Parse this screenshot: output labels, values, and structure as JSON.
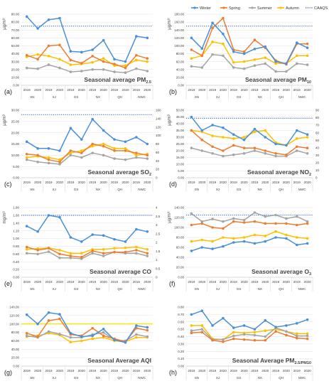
{
  "legend": {
    "items": [
      {
        "label": "Winter",
        "color": "#4a90d9",
        "kind": "line"
      },
      {
        "label": "Spring",
        "color": "#ed7d31",
        "kind": "line"
      },
      {
        "label": "Summer",
        "color": "#a5a5a5",
        "kind": "line"
      },
      {
        "label": "Autumn",
        "color": "#ffc000",
        "kind": "line"
      },
      {
        "label": "CAAQS G2",
        "color": "#4472c4",
        "kind": "dotted"
      }
    ]
  },
  "chart_data": [
    {
      "type": "line",
      "panel": "(a)",
      "title": "Seasonal average PM",
      "title_sub": "2.5",
      "ylabel": "μg/m³",
      "ylim": [
        0,
        90
      ],
      "yticks": [
        0,
        10,
        20,
        30,
        40,
        50,
        60,
        70,
        80,
        90
      ],
      "tick_decimals": 2,
      "x": [
        "2019",
        "2020",
        "2019",
        "2020",
        "2019",
        "2020",
        "2019",
        "2020",
        "2019",
        "2020",
        "2019",
        "2020"
      ],
      "groups": [
        "SN",
        "XJ",
        "GS",
        "NX",
        "QH",
        "NWC"
      ],
      "reference": 75,
      "series": [
        {
          "name": "Winter",
          "values": [
            87,
            72,
            83,
            85,
            43,
            42,
            45,
            57,
            33,
            30,
            62,
            60
          ]
        },
        {
          "name": "Spring",
          "values": [
            38,
            33,
            50,
            51,
            32,
            28,
            37,
            30,
            27,
            22,
            38,
            34
          ]
        },
        {
          "name": "Summer",
          "values": [
            22,
            21,
            26,
            22,
            17,
            18,
            20,
            20,
            17,
            16,
            21,
            18
          ]
        },
        {
          "name": "Autumn",
          "values": [
            36,
            39,
            37,
            33,
            26,
            27,
            29,
            34,
            25,
            25,
            32,
            30
          ]
        }
      ]
    },
    {
      "type": "line",
      "panel": "(b)",
      "title": "Seasonal average PM",
      "title_sub": "10",
      "ylabel": "μg/m³",
      "ylim": [
        0,
        180
      ],
      "yticks": [
        0,
        20,
        40,
        60,
        80,
        100,
        120,
        140,
        160,
        180
      ],
      "tick_decimals": 2,
      "x": [
        "2019",
        "2020",
        "2019",
        "2020",
        "2019",
        "2020",
        "2019",
        "2020",
        "2019",
        "2020",
        "2019",
        "2020"
      ],
      "groups": [
        "SN",
        "XJ",
        "GS",
        "NX",
        "QH",
        "NWC"
      ],
      "reference": 150,
      "series": [
        {
          "name": "Winter",
          "values": [
            120,
            93,
            158,
            130,
            85,
            80,
            92,
            98,
            60,
            55,
            108,
            95
          ]
        },
        {
          "name": "Spring",
          "values": [
            90,
            75,
            145,
            170,
            90,
            85,
            115,
            95,
            63,
            53,
            105,
            105
          ]
        },
        {
          "name": "Summer",
          "values": [
            48,
            45,
            78,
            75,
            45,
            42,
            50,
            55,
            35,
            35,
            55,
            52
          ]
        },
        {
          "name": "Autumn",
          "values": [
            68,
            75,
            110,
            105,
            58,
            60,
            65,
            70,
            55,
            55,
            75,
            75
          ]
        }
      ]
    },
    {
      "type": "line",
      "panel": "(c)",
      "title": "Seasonal average SO",
      "title_sub": "2",
      "ylabel": "μg/m³",
      "ylim": [
        0,
        30
      ],
      "yticks": [
        0,
        5,
        10,
        15,
        20,
        25,
        30
      ],
      "tick_decimals": 2,
      "y2lim": [
        0,
        160
      ],
      "y2ticks": [
        0,
        20,
        40,
        60,
        80,
        100,
        120,
        140,
        160
      ],
      "x": [
        "2019",
        "2020",
        "2019",
        "2020",
        "2019",
        "2020",
        "2019",
        "2020",
        "2019",
        "2020",
        "2019",
        "2020"
      ],
      "groups": [
        "SN",
        "XJ",
        "GS",
        "NX",
        "QH",
        "NWC"
      ],
      "reference": 28,
      "series": [
        {
          "name": "Winter",
          "values": [
            16,
            13,
            13,
            12,
            22,
            17,
            26,
            21,
            17,
            16,
            18,
            15
          ]
        },
        {
          "name": "Spring",
          "values": [
            10.5,
            10,
            8,
            7,
            12,
            11,
            15,
            14,
            12,
            12,
            11,
            10
          ]
        },
        {
          "name": "Summer",
          "values": [
            8,
            7,
            6.5,
            6,
            10,
            9,
            11,
            10,
            8.5,
            8,
            9,
            8.5
          ]
        },
        {
          "name": "Autumn",
          "values": [
            9,
            9.5,
            9,
            8,
            11,
            12,
            14,
            15,
            13,
            13,
            10,
            10.5
          ]
        }
      ]
    },
    {
      "type": "line",
      "panel": "(d)",
      "title": "Seasonal average NO",
      "title_sub": "2",
      "ylabel": "μg/m³",
      "ylim": [
        0,
        50
      ],
      "yticks": [
        0,
        5,
        10,
        15,
        20,
        25,
        30,
        35,
        40,
        45,
        50
      ],
      "tick_decimals": 2,
      "y2lim": [
        0,
        90
      ],
      "y2ticks": [
        0,
        10,
        20,
        30,
        40,
        50,
        60,
        70,
        80,
        90
      ],
      "x": [
        "2019",
        "2020",
        "2019",
        "2020",
        "2019",
        "2020",
        "2019",
        "2020",
        "2019",
        "2020",
        "2019",
        "2020"
      ],
      "groups": [
        "SN",
        "XJ",
        "GS",
        "NX",
        "QH",
        "NWC"
      ],
      "reference": 44,
      "series": [
        {
          "name": "Winter",
          "values": [
            45,
            35,
            39,
            37,
            32,
            28,
            36,
            30,
            25,
            24,
            35,
            32
          ]
        },
        {
          "name": "Spring",
          "values": [
            35,
            28,
            23,
            20,
            24,
            22,
            22,
            20,
            18,
            17,
            23,
            22
          ]
        },
        {
          "name": "Summer",
          "values": [
            22,
            20,
            18,
            16,
            17,
            18,
            20,
            18,
            16,
            16,
            20,
            18
          ]
        },
        {
          "name": "Autumn",
          "values": [
            35,
            34,
            31,
            30,
            29,
            30,
            34,
            35,
            26,
            24,
            29,
            30
          ]
        }
      ]
    },
    {
      "type": "line",
      "panel": "(e)",
      "title": "Seasonal average CO",
      "title_sub": "",
      "ylabel": "mg/m³",
      "ylim": [
        0,
        1.8
      ],
      "yticks": [
        0,
        0.2,
        0.4,
        0.6,
        0.8,
        1.0,
        1.2,
        1.4,
        1.6,
        1.8
      ],
      "tick_decimals": 2,
      "y2lim": [
        0,
        4
      ],
      "y2ticks": [
        0,
        0.5,
        1,
        1.5,
        2,
        2.5,
        3,
        3.5,
        4
      ],
      "x": [
        "2019",
        "2020",
        "2019",
        "2020",
        "2019",
        "2020",
        "2019",
        "2020",
        "2019",
        "2020",
        "2019",
        "2020"
      ],
      "groups": [
        "SN",
        "XJ",
        "GS",
        "NX",
        "QH",
        "NWC"
      ],
      "reference": 1.6,
      "series": [
        {
          "name": "Winter",
          "values": [
            1.32,
            1.18,
            1.6,
            1.55,
            1.03,
            0.92,
            1.1,
            1.08,
            0.98,
            0.92,
            1.24,
            1.18
          ]
        },
        {
          "name": "Spring",
          "values": [
            0.78,
            0.7,
            0.75,
            0.6,
            0.55,
            0.52,
            0.68,
            0.62,
            0.65,
            0.65,
            0.7,
            0.62
          ]
        },
        {
          "name": "Summer",
          "values": [
            0.62,
            0.6,
            0.66,
            0.5,
            0.5,
            0.48,
            0.62,
            0.55,
            0.65,
            0.62,
            0.62,
            0.55
          ]
        },
        {
          "name": "Autumn",
          "values": [
            0.72,
            0.74,
            0.76,
            0.7,
            0.62,
            0.62,
            0.72,
            0.72,
            0.75,
            0.76,
            0.78,
            0.72
          ]
        }
      ]
    },
    {
      "type": "line",
      "panel": "(f)",
      "title": "Seasonal average O",
      "title_sub": "3",
      "ylabel": "μg/m³",
      "ylim": [
        0,
        140
      ],
      "yticks": [
        0,
        20,
        40,
        60,
        80,
        100,
        120,
        140
      ],
      "tick_decimals": 2,
      "x": [
        "2019",
        "2020",
        "2019",
        "2020",
        "2019",
        "2020",
        "2019",
        "2020",
        "2019",
        "2020",
        "2019",
        "2020"
      ],
      "groups": [
        "SN",
        "XJ",
        "GS",
        "NX",
        "QH",
        "NWC"
      ],
      "reference": 125,
      "series": [
        {
          "name": "Winter",
          "values": [
            53,
            60,
            57,
            62,
            70,
            72,
            68,
            72,
            80,
            78,
            65,
            68
          ]
        },
        {
          "name": "Spring",
          "values": [
            105,
            108,
            100,
            98,
            112,
            110,
            112,
            108,
            108,
            108,
            105,
            108
          ]
        },
        {
          "name": "Summer",
          "values": [
            128,
            112,
            117,
            112,
            118,
            115,
            130,
            122,
            125,
            118,
            122,
            112
          ]
        },
        {
          "name": "Autumn",
          "values": [
            72,
            75,
            72,
            80,
            78,
            80,
            85,
            83,
            92,
            85,
            80,
            78
          ]
        }
      ]
    },
    {
      "type": "line",
      "panel": "(g)",
      "title": "Seasonal Average AQI",
      "title_sub": "",
      "ylabel": "",
      "ylim": [
        0,
        140
      ],
      "yticks": [
        0,
        20,
        40,
        60,
        80,
        100,
        120,
        140
      ],
      "tick_decimals": 2,
      "x": [
        "2019",
        "2020",
        "2019",
        "2020",
        "2019",
        "2020",
        "2019",
        "2020",
        "2019",
        "2020",
        "2019",
        "2020"
      ],
      "groups": [
        "SN",
        "XJ",
        "GS",
        "NX",
        "QH",
        "NWC"
      ],
      "reference": 100,
      "reference_color": "#ffe600",
      "series": [
        {
          "name": "Winter",
          "values": [
            122,
            100,
            127,
            123,
            78,
            70,
            72,
            88,
            62,
            56,
            96,
            92
          ]
        },
        {
          "name": "Spring",
          "values": [
            78,
            70,
            108,
            112,
            75,
            72,
            90,
            72,
            65,
            58,
            90,
            85
          ]
        },
        {
          "name": "Summer",
          "values": [
            72,
            68,
            82,
            76,
            68,
            68,
            75,
            80,
            62,
            60,
            75,
            70
          ]
        },
        {
          "name": "Autumn",
          "values": [
            70,
            72,
            78,
            74,
            57,
            60,
            65,
            68,
            60,
            58,
            68,
            68
          ]
        }
      ]
    },
    {
      "type": "line",
      "panel": "(h)",
      "title": "Seasonal Average PM",
      "title_sub": "2.5/PM10",
      "ylabel": "",
      "ylim": [
        0,
        0.8
      ],
      "yticks": [
        0,
        0.1,
        0.2,
        0.3,
        0.4,
        0.5,
        0.6,
        0.7,
        0.8
      ],
      "tick_decimals": 2,
      "x": [
        "2019",
        "2020",
        "2019",
        "2020",
        "2019",
        "2020",
        "2019",
        "2020",
        "2019",
        "2020",
        "2019",
        "2020"
      ],
      "groups": [
        "SN",
        "XJ",
        "GS",
        "NX",
        "QH",
        "NWC"
      ],
      "series": [
        {
          "name": "Winter",
          "values": [
            0.7,
            0.75,
            0.55,
            0.65,
            0.52,
            0.55,
            0.5,
            0.62,
            0.53,
            0.55,
            0.58,
            0.63
          ]
        },
        {
          "name": "Spring",
          "values": [
            0.45,
            0.46,
            0.35,
            0.33,
            0.37,
            0.36,
            0.35,
            0.35,
            0.47,
            0.42,
            0.38,
            0.37
          ]
        },
        {
          "name": "Summer",
          "values": [
            0.48,
            0.5,
            0.36,
            0.36,
            0.41,
            0.43,
            0.42,
            0.4,
            0.52,
            0.47,
            0.41,
            0.41
          ]
        },
        {
          "name": "Autumn",
          "values": [
            0.55,
            0.55,
            0.37,
            0.36,
            0.46,
            0.45,
            0.46,
            0.48,
            0.5,
            0.47,
            0.44,
            0.44
          ]
        }
      ]
    }
  ]
}
